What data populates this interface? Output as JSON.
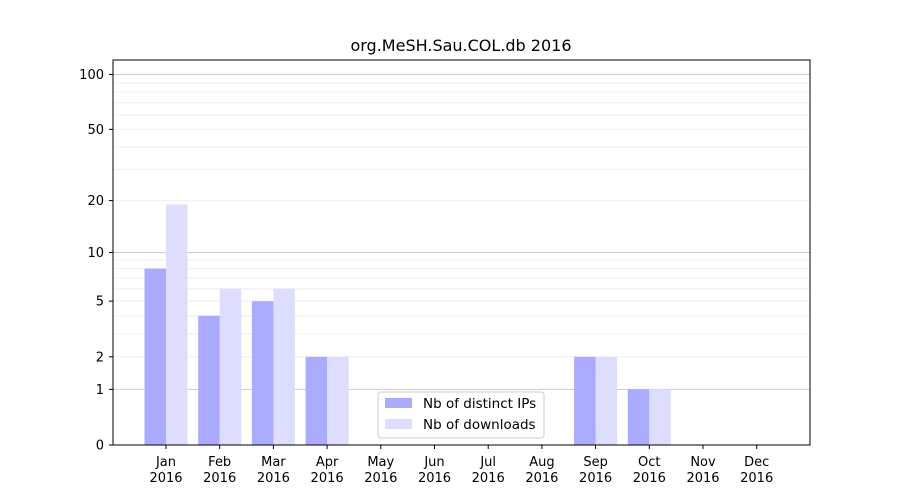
{
  "chart_data": {
    "type": "bar",
    "title": "org.MeSH.Sau.COL.db 2016",
    "xlabel": "",
    "ylabel": "",
    "categories": [
      [
        "Jan",
        "2016"
      ],
      [
        "Feb",
        "2016"
      ],
      [
        "Mar",
        "2016"
      ],
      [
        "Apr",
        "2016"
      ],
      [
        "May",
        "2016"
      ],
      [
        "Jun",
        "2016"
      ],
      [
        "Jul",
        "2016"
      ],
      [
        "Aug",
        "2016"
      ],
      [
        "Sep",
        "2016"
      ],
      [
        "Oct",
        "2016"
      ],
      [
        "Nov",
        "2016"
      ],
      [
        "Dec",
        "2016"
      ]
    ],
    "series": [
      {
        "name": "Nb of distinct IPs",
        "color": "#aaaaff",
        "values": [
          8,
          4,
          5,
          2,
          0,
          0,
          0,
          0,
          2,
          1,
          0,
          0
        ]
      },
      {
        "name": "Nb of downloads",
        "color": "#ddddff",
        "values": [
          19,
          6,
          6,
          2,
          0,
          0,
          0,
          0,
          2,
          1,
          0,
          0
        ]
      }
    ],
    "y_scale": "log(1+y)",
    "ylim": [
      0,
      120
    ],
    "yticks": [
      0,
      1,
      2,
      5,
      10,
      20,
      50,
      100
    ],
    "y_major_gridlines": [
      1,
      10,
      100
    ],
    "y_minor_gridlines": [
      2,
      3,
      4,
      5,
      6,
      7,
      8,
      9,
      20,
      30,
      40,
      50,
      60,
      70,
      80,
      90
    ],
    "legend_position": "bottom-center"
  }
}
